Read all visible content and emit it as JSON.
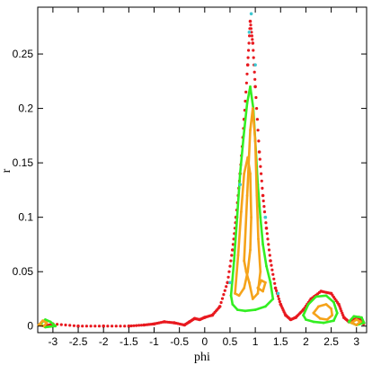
{
  "chart_data": {
    "type": "scatter",
    "title": "",
    "xlabel": "phi",
    "ylabel": "r",
    "xlim": [
      -3.3,
      3.2
    ],
    "ylim": [
      -0.006,
      0.293
    ],
    "xticks": [
      -3,
      -2.5,
      -2,
      -1.5,
      -1,
      -0.5,
      0,
      0.5,
      1,
      1.5,
      2,
      2.5,
      3
    ],
    "xtick_labels": [
      "-3",
      "-2.5",
      "-2",
      "-1.5",
      "-1",
      "-0.5",
      "0",
      "0.5",
      "1",
      "1.5",
      "2",
      "2.5",
      "3"
    ],
    "yticks": [
      0,
      0.05,
      0.1,
      0.15,
      0.2,
      0.25
    ],
    "ytick_labels": [
      "0",
      "0.05",
      "0.1",
      "0.15",
      "0.2",
      "0.25"
    ],
    "grid": false,
    "legend": false,
    "series": [
      {
        "color": "#e8191f",
        "marker": "dots",
        "points": [
          [
            -3.14,
            0.0
          ],
          [
            -3.0,
            0.002
          ],
          [
            -2.5,
            0.0
          ],
          [
            -2.0,
            0.0
          ],
          [
            -1.5,
            0.0
          ],
          [
            -1.2,
            0.001
          ],
          [
            -1.0,
            0.002
          ],
          [
            -0.8,
            0.004
          ],
          [
            -0.6,
            0.003
          ],
          [
            -0.4,
            0.001
          ],
          [
            -0.3,
            0.004
          ],
          [
            -0.2,
            0.007
          ],
          [
            -0.1,
            0.006
          ],
          [
            0.0,
            0.008
          ],
          [
            0.15,
            0.01
          ],
          [
            0.3,
            0.018
          ],
          [
            0.45,
            0.04
          ],
          [
            0.55,
            0.07
          ],
          [
            0.62,
            0.1
          ],
          [
            0.7,
            0.14
          ],
          [
            0.78,
            0.19
          ],
          [
            0.85,
            0.24
          ],
          [
            0.9,
            0.28
          ],
          [
            0.95,
            0.26
          ],
          [
            1.0,
            0.22
          ],
          [
            1.08,
            0.16
          ],
          [
            1.15,
            0.12
          ],
          [
            1.22,
            0.09
          ],
          [
            1.3,
            0.06
          ],
          [
            1.4,
            0.035
          ],
          [
            1.5,
            0.02
          ],
          [
            1.6,
            0.01
          ],
          [
            1.7,
            0.006
          ],
          [
            1.8,
            0.008
          ],
          [
            1.95,
            0.015
          ],
          [
            2.1,
            0.025
          ],
          [
            2.3,
            0.032
          ],
          [
            2.5,
            0.03
          ],
          [
            2.65,
            0.02
          ],
          [
            2.75,
            0.008
          ],
          [
            2.85,
            0.004
          ],
          [
            2.95,
            0.006
          ],
          [
            3.05,
            0.008
          ],
          [
            3.14,
            0.002
          ]
        ]
      },
      {
        "color": "#33ee22",
        "marker": "loop",
        "points": [
          [
            0.52,
            0.028
          ],
          [
            0.58,
            0.06
          ],
          [
            0.64,
            0.1
          ],
          [
            0.7,
            0.14
          ],
          [
            0.77,
            0.175
          ],
          [
            0.84,
            0.205
          ],
          [
            0.9,
            0.22
          ],
          [
            0.96,
            0.2
          ],
          [
            1.0,
            0.17
          ],
          [
            1.05,
            0.13
          ],
          [
            1.1,
            0.1
          ],
          [
            1.15,
            0.075
          ],
          [
            1.22,
            0.055
          ],
          [
            1.3,
            0.04
          ],
          [
            1.35,
            0.025
          ],
          [
            1.2,
            0.018
          ],
          [
            1.0,
            0.015
          ],
          [
            0.8,
            0.014
          ],
          [
            0.65,
            0.015
          ],
          [
            0.55,
            0.02
          ],
          [
            0.52,
            0.028
          ]
        ]
      },
      {
        "color": "#33ee22",
        "marker": "loop",
        "points": [
          [
            1.95,
            0.01
          ],
          [
            2.05,
            0.02
          ],
          [
            2.2,
            0.027
          ],
          [
            2.4,
            0.028
          ],
          [
            2.55,
            0.022
          ],
          [
            2.62,
            0.012
          ],
          [
            2.55,
            0.005
          ],
          [
            2.35,
            0.003
          ],
          [
            2.15,
            0.004
          ],
          [
            2.0,
            0.006
          ],
          [
            1.95,
            0.01
          ]
        ]
      },
      {
        "color": "#33ee22",
        "marker": "loop",
        "points": [
          [
            -3.25,
            0.002
          ],
          [
            -3.15,
            0.006
          ],
          [
            -3.05,
            0.004
          ],
          [
            -2.95,
            0.0
          ],
          [
            -3.15,
            -0.001
          ],
          [
            -3.25,
            0.002
          ]
        ]
      },
      {
        "color": "#33ee22",
        "marker": "loop",
        "points": [
          [
            2.85,
            0.004
          ],
          [
            2.95,
            0.009
          ],
          [
            3.1,
            0.008
          ],
          [
            3.15,
            0.003
          ],
          [
            3.0,
            0.001
          ],
          [
            2.85,
            0.004
          ]
        ]
      },
      {
        "color": "#f5a31a",
        "marker": "loop",
        "points": [
          [
            0.6,
            0.03
          ],
          [
            0.66,
            0.065
          ],
          [
            0.72,
            0.105
          ],
          [
            0.78,
            0.14
          ],
          [
            0.85,
            0.155
          ],
          [
            0.9,
            0.14
          ],
          [
            0.92,
            0.1
          ],
          [
            0.9,
            0.07
          ],
          [
            0.85,
            0.05
          ],
          [
            0.78,
            0.035
          ],
          [
            0.68,
            0.028
          ],
          [
            0.6,
            0.03
          ]
        ]
      },
      {
        "color": "#f5a31a",
        "marker": "loop",
        "points": [
          [
            0.78,
            0.06
          ],
          [
            0.84,
            0.12
          ],
          [
            0.9,
            0.18
          ],
          [
            0.95,
            0.2
          ],
          [
            1.0,
            0.17
          ],
          [
            1.03,
            0.12
          ],
          [
            1.06,
            0.08
          ],
          [
            1.1,
            0.05
          ],
          [
            1.05,
            0.03
          ],
          [
            0.95,
            0.025
          ],
          [
            0.88,
            0.04
          ],
          [
            0.82,
            0.05
          ],
          [
            0.78,
            0.06
          ]
        ]
      },
      {
        "color": "#f5a31a",
        "marker": "loop",
        "points": [
          [
            1.05,
            0.035
          ],
          [
            1.12,
            0.042
          ],
          [
            1.2,
            0.04
          ],
          [
            1.15,
            0.032
          ],
          [
            1.05,
            0.035
          ]
        ]
      },
      {
        "color": "#f5a31a",
        "marker": "loop",
        "points": [
          [
            2.15,
            0.012
          ],
          [
            2.25,
            0.018
          ],
          [
            2.4,
            0.02
          ],
          [
            2.5,
            0.016
          ],
          [
            2.52,
            0.01
          ],
          [
            2.42,
            0.006
          ],
          [
            2.28,
            0.007
          ],
          [
            2.15,
            0.012
          ]
        ]
      },
      {
        "color": "#f5a31a",
        "marker": "loop",
        "points": [
          [
            -3.28,
            0.001
          ],
          [
            -3.2,
            0.005
          ],
          [
            -3.12,
            0.003
          ],
          [
            -3.18,
            0.0
          ],
          [
            -3.28,
            0.001
          ]
        ]
      },
      {
        "color": "#f5a31a",
        "marker": "loop",
        "points": [
          [
            2.9,
            0.003
          ],
          [
            3.0,
            0.006
          ],
          [
            3.08,
            0.004
          ],
          [
            3.0,
            0.001
          ],
          [
            2.9,
            0.003
          ]
        ]
      },
      {
        "color": "#3ec8d2",
        "marker": "dots",
        "points": [
          [
            0.92,
            0.287
          ],
          [
            0.88,
            0.27
          ],
          [
            1.0,
            0.24
          ],
          [
            0.7,
            0.13
          ],
          [
            1.2,
            0.1
          ],
          [
            0.5,
            0.04
          ],
          [
            1.45,
            0.03
          ]
        ]
      }
    ]
  }
}
